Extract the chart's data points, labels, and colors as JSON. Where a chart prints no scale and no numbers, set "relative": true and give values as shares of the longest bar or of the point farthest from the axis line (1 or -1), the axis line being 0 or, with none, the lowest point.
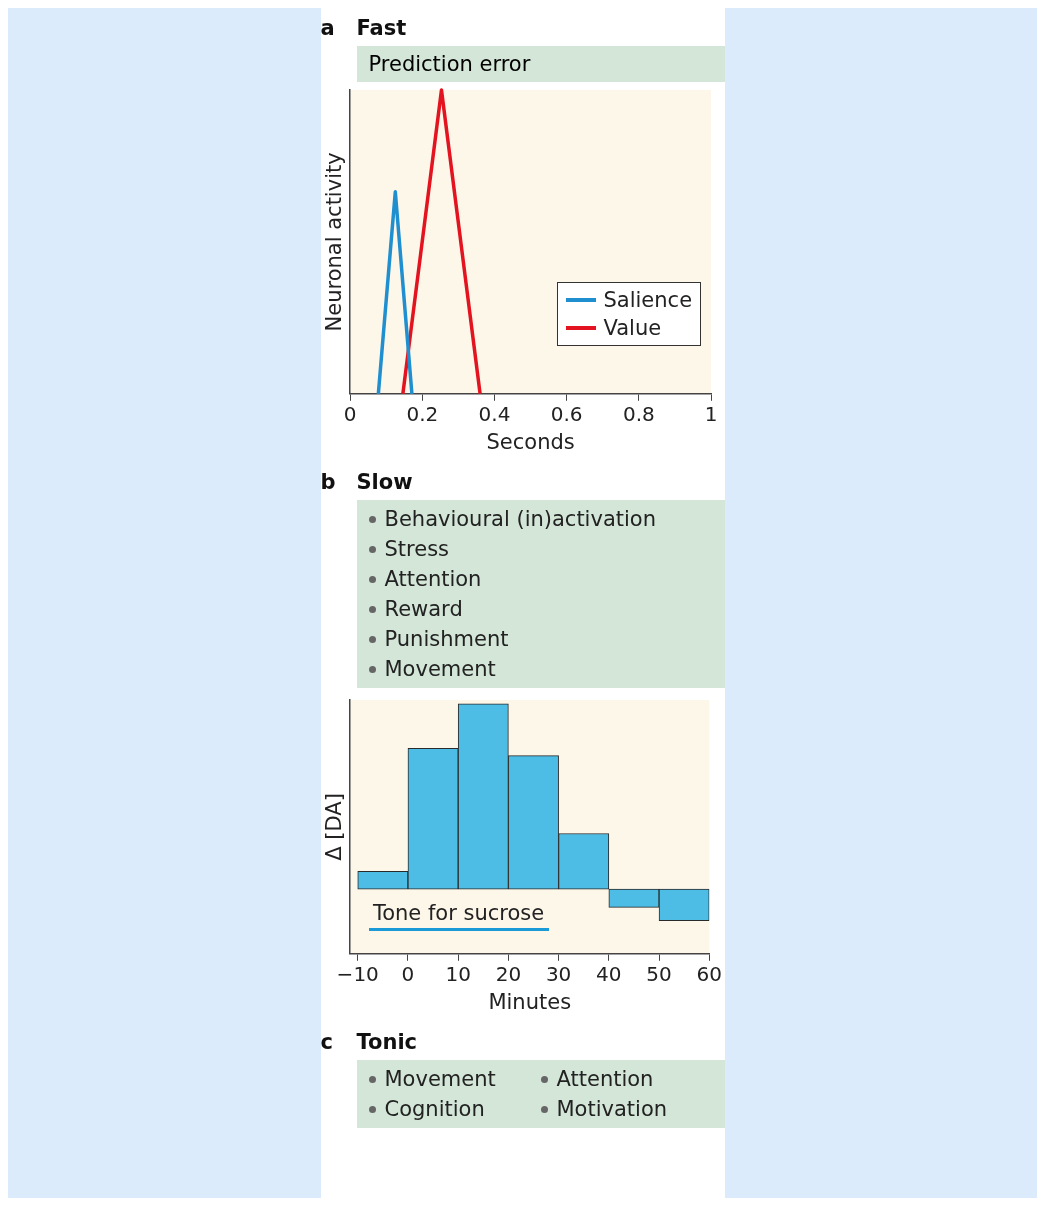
{
  "chart_data": [
    {
      "type": "line",
      "title": "Fast",
      "subtitle": "Prediction error",
      "ylabel": "Neuronal activity",
      "xlabel": "Seconds",
      "annotations": [
        "a"
      ],
      "relative": true,
      "legend": "bottom right",
      "xlim": [
        0,
        1
      ],
      "xticks": [
        0,
        0.2,
        0.4,
        0.6,
        0.8,
        1
      ],
      "series": [
        {
          "name": "Salience",
          "color": "#1f8fd0",
          "x": [
            0.078,
            0.125,
            0.171
          ],
          "values": [
            0,
            0.665,
            0
          ]
        },
        {
          "name": "Value",
          "color": "#e3141f",
          "x": [
            0.146,
            0.253,
            0.36
          ],
          "values": [
            0,
            1,
            0
          ]
        }
      ]
    },
    {
      "type": "bar",
      "title": "Slow",
      "ylabel": "Δ [DA]",
      "xlabel": "Minutes",
      "relative": true,
      "color": "#4dbde6",
      "x": [
        -5,
        5,
        15,
        25,
        35,
        45,
        55
      ],
      "values": [
        0.096,
        0.76,
        1,
        0.72,
        0.3,
        -0.098,
        -0.17
      ],
      "xlim": [
        -11.5,
        60
      ],
      "xticks": [
        {
          "value": -10,
          "label": "−10"
        },
        0,
        10,
        20,
        30,
        40,
        50,
        60
      ],
      "annotations": [
        "b",
        "Behavioural (in)activation",
        "Stress",
        "Attention",
        "Reward",
        "Punishment",
        "Movement",
        "Tone for sucrose"
      ]
    },
    {
      "type": "other",
      "title": "Tonic",
      "annotations": [
        "c",
        "Movement",
        "Attention",
        "Cognition",
        "Motivation"
      ]
    }
  ]
}
